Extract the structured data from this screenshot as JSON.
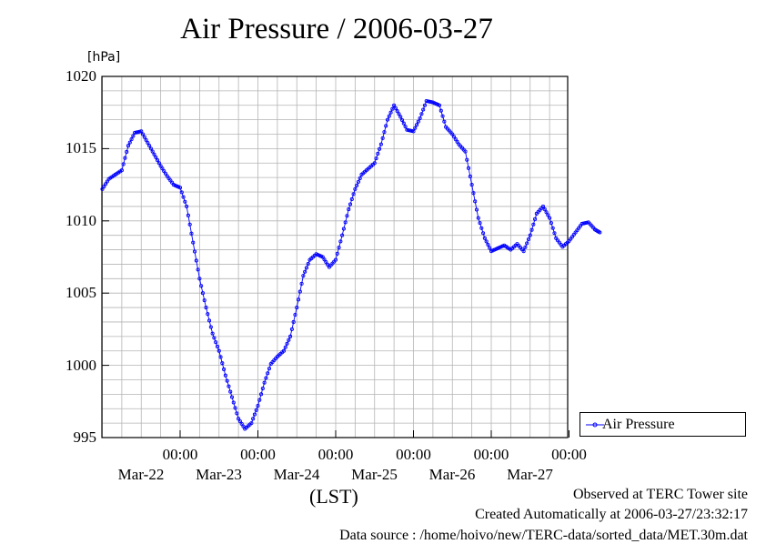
{
  "chart_data": {
    "type": "line",
    "title": "Air Pressure / 2006-03-27",
    "ylabel": "[hPa]",
    "xlabel": "(LST)",
    "ylim": [
      995,
      1020
    ],
    "yticks": [
      "1020",
      "1015",
      "1010",
      "1005",
      "1000",
      "995"
    ],
    "xticks": [
      {
        "time": "00:00",
        "date": "Mar-22"
      },
      {
        "time": "00:00",
        "date": "Mar-23"
      },
      {
        "time": "00:00",
        "date": "Mar-24"
      },
      {
        "time": "00:00",
        "date": "Mar-25"
      },
      {
        "time": "00:00",
        "date": "Mar-26"
      },
      {
        "time": "00:00",
        "date": "Mar-27"
      }
    ],
    "grid": true,
    "legend_position": "right",
    "series": [
      {
        "name": "Air Pressure",
        "color": "#0000ff",
        "marker": "circle",
        "points": [
          [
            "2006-03-22 00:00",
            1012.2
          ],
          [
            "2006-03-22 02:00",
            1012.9
          ],
          [
            "2006-03-22 04:00",
            1013.2
          ],
          [
            "2006-03-22 06:00",
            1013.5
          ],
          [
            "2006-03-22 08:00",
            1015.2
          ],
          [
            "2006-03-22 10:00",
            1016.1
          ],
          [
            "2006-03-22 12:00",
            1016.2
          ],
          [
            "2006-03-22 14:00",
            1015.4
          ],
          [
            "2006-03-22 16:00",
            1014.6
          ],
          [
            "2006-03-22 18:00",
            1013.8
          ],
          [
            "2006-03-22 20:00",
            1013.1
          ],
          [
            "2006-03-22 22:00",
            1012.5
          ],
          [
            "2006-03-23 00:00",
            1012.3
          ],
          [
            "2006-03-23 02:00",
            1011.0
          ],
          [
            "2006-03-23 04:00",
            1008.5
          ],
          [
            "2006-03-23 06:00",
            1006.0
          ],
          [
            "2006-03-23 08:00",
            1004.0
          ],
          [
            "2006-03-23 10:00",
            1002.2
          ],
          [
            "2006-03-23 12:00",
            1001.0
          ],
          [
            "2006-03-23 14:00",
            999.3
          ],
          [
            "2006-03-23 16:00",
            997.8
          ],
          [
            "2006-03-23 18:00",
            996.3
          ],
          [
            "2006-03-23 20:00",
            995.6
          ],
          [
            "2006-03-23 22:00",
            996.0
          ],
          [
            "2006-03-24 00:00",
            997.2
          ],
          [
            "2006-03-24 02:00",
            998.8
          ],
          [
            "2006-03-24 04:00",
            1000.1
          ],
          [
            "2006-03-24 06:00",
            1000.6
          ],
          [
            "2006-03-24 08:00",
            1001.0
          ],
          [
            "2006-03-24 10:00",
            1002.0
          ],
          [
            "2006-03-24 12:00",
            1004.0
          ],
          [
            "2006-03-24 14:00",
            1006.2
          ],
          [
            "2006-03-24 16:00",
            1007.3
          ],
          [
            "2006-03-24 18:00",
            1007.7
          ],
          [
            "2006-03-24 20:00",
            1007.5
          ],
          [
            "2006-03-24 22:00",
            1006.8
          ],
          [
            "2006-03-25 00:00",
            1007.3
          ],
          [
            "2006-03-25 02:00",
            1009.0
          ],
          [
            "2006-03-25 04:00",
            1010.8
          ],
          [
            "2006-03-25 06:00",
            1012.2
          ],
          [
            "2006-03-25 08:00",
            1013.2
          ],
          [
            "2006-03-25 10:00",
            1013.6
          ],
          [
            "2006-03-25 12:00",
            1014.0
          ],
          [
            "2006-03-25 14:00",
            1015.3
          ],
          [
            "2006-03-25 16:00",
            1017.0
          ],
          [
            "2006-03-25 18:00",
            1018.0
          ],
          [
            "2006-03-25 20:00",
            1017.2
          ],
          [
            "2006-03-25 22:00",
            1016.3
          ],
          [
            "2006-03-26 00:00",
            1016.2
          ],
          [
            "2006-03-26 02:00",
            1017.1
          ],
          [
            "2006-03-26 04:00",
            1018.3
          ],
          [
            "2006-03-26 06:00",
            1018.2
          ],
          [
            "2006-03-26 08:00",
            1018.0
          ],
          [
            "2006-03-26 10:00",
            1016.5
          ],
          [
            "2006-03-26 12:00",
            1016.0
          ],
          [
            "2006-03-26 14:00",
            1015.3
          ],
          [
            "2006-03-26 16:00",
            1014.8
          ],
          [
            "2006-03-26 18:00",
            1012.5
          ],
          [
            "2006-03-26 20:00",
            1010.2
          ],
          [
            "2006-03-26 22:00",
            1008.8
          ],
          [
            "2006-03-27 00:00",
            1007.9
          ],
          [
            "2006-03-27 02:00",
            1008.1
          ],
          [
            "2006-03-27 04:00",
            1008.3
          ],
          [
            "2006-03-27 06:00",
            1008.0
          ],
          [
            "2006-03-27 08:00",
            1008.4
          ],
          [
            "2006-03-27 10:00",
            1007.9
          ],
          [
            "2006-03-27 12:00",
            1009.0
          ],
          [
            "2006-03-27 14:00",
            1010.5
          ],
          [
            "2006-03-27 16:00",
            1011.0
          ],
          [
            "2006-03-27 18:00",
            1010.2
          ],
          [
            "2006-03-27 20:00",
            1008.8
          ],
          [
            "2006-03-27 22:00",
            1008.2
          ],
          [
            "2006-03-28 00:00",
            1008.6
          ],
          [
            "2006-03-28 02:00",
            1009.2
          ],
          [
            "2006-03-28 04:00",
            1009.8
          ],
          [
            "2006-03-28 06:00",
            1009.9
          ],
          [
            "2006-03-28 08:00",
            1009.4
          ],
          [
            "2006-03-28 09:30",
            1009.2
          ]
        ]
      }
    ]
  },
  "footer": {
    "site": "Observed at TERC Tower site",
    "created": "Created Automatically at 2006-03-27/23:32:17",
    "source": "Data source : /home/hoivo/new/TERC-data/sorted_data/MET.30m.dat"
  }
}
